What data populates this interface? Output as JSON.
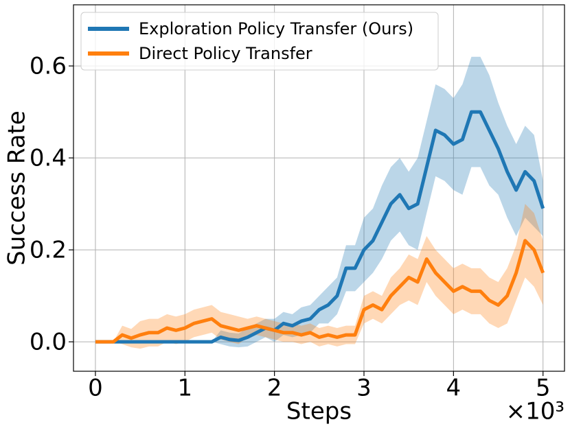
{
  "chart_data": {
    "type": "line",
    "xlabel": "Steps",
    "ylabel": "Success Rate",
    "x_offset_label": "×10³",
    "x": [
      0,
      0.1,
      0.2,
      0.3,
      0.4,
      0.5,
      0.6,
      0.7,
      0.8,
      0.9,
      1,
      1.1,
      1.2,
      1.3,
      1.4,
      1.5,
      1.6,
      1.7,
      1.8,
      1.9,
      2,
      2.1,
      2.2,
      2.3,
      2.4,
      2.5,
      2.6,
      2.7,
      2.8,
      2.9,
      3,
      3.1,
      3.2,
      3.3,
      3.4,
      3.5,
      3.6,
      3.7,
      3.8,
      3.9,
      4,
      4.1,
      4.2,
      4.3,
      4.4,
      4.5,
      4.6,
      4.7,
      4.8,
      4.9,
      5
    ],
    "series": [
      {
        "name": "Exploration Policy Transfer (Ours)",
        "color": "#1f77b4",
        "values": [
          0,
          0,
          0,
          0,
          0,
          0,
          0,
          0,
          0,
          0,
          0,
          0,
          0,
          0,
          0.01,
          0.005,
          0.003,
          0.01,
          0.02,
          0.03,
          0.025,
          0.04,
          0.035,
          0.045,
          0.05,
          0.07,
          0.08,
          0.1,
          0.16,
          0.16,
          0.2,
          0.22,
          0.26,
          0.3,
          0.32,
          0.29,
          0.3,
          0.38,
          0.46,
          0.45,
          0.43,
          0.44,
          0.5,
          0.5,
          0.46,
          0.42,
          0.37,
          0.33,
          0.37,
          0.35,
          0.29
        ],
        "lower": [
          0,
          0,
          0,
          0,
          0,
          0,
          0,
          0,
          0,
          0,
          0,
          0,
          0,
          0,
          -0.005,
          -0.01,
          -0.012,
          -0.01,
          0,
          0.01,
          0,
          0.015,
          0.01,
          0.015,
          0.02,
          0.04,
          0.04,
          0.06,
          0.11,
          0.11,
          0.13,
          0.15,
          0.18,
          0.22,
          0.24,
          0.21,
          0.2,
          0.28,
          0.36,
          0.35,
          0.33,
          0.32,
          0.38,
          0.38,
          0.34,
          0.32,
          0.27,
          0.23,
          0.27,
          0.25,
          0.23
        ],
        "upper": [
          0,
          0,
          0,
          0,
          0,
          0,
          0,
          0,
          0,
          0,
          0,
          0,
          0,
          0,
          0.025,
          0.02,
          0.018,
          0.03,
          0.04,
          0.05,
          0.05,
          0.065,
          0.06,
          0.075,
          0.08,
          0.1,
          0.12,
          0.14,
          0.21,
          0.21,
          0.27,
          0.29,
          0.34,
          0.38,
          0.4,
          0.37,
          0.4,
          0.48,
          0.56,
          0.55,
          0.53,
          0.56,
          0.62,
          0.62,
          0.58,
          0.52,
          0.47,
          0.43,
          0.47,
          0.45,
          0.35
        ]
      },
      {
        "name": "Direct Policy Transfer",
        "color": "#ff7f0e",
        "values": [
          0,
          0,
          0,
          0.015,
          0.008,
          0.015,
          0.02,
          0.02,
          0.03,
          0.025,
          0.03,
          0.04,
          0.045,
          0.05,
          0.035,
          0.03,
          0.025,
          0.03,
          0.035,
          0.03,
          0.025,
          0.02,
          0.02,
          0.015,
          0.02,
          0.01,
          0.015,
          0.01,
          0.015,
          0.015,
          0.07,
          0.08,
          0.07,
          0.1,
          0.12,
          0.14,
          0.13,
          0.18,
          0.15,
          0.13,
          0.11,
          0.12,
          0.11,
          0.11,
          0.09,
          0.08,
          0.1,
          0.15,
          0.22,
          0.2,
          0.15
        ],
        "lower": [
          0,
          0,
          0,
          -0.005,
          -0.012,
          -0.015,
          -0.01,
          -0.01,
          0,
          -0.005,
          0,
          0.01,
          0.015,
          0.02,
          0.005,
          0,
          -0.005,
          0.01,
          0.015,
          0.01,
          0.005,
          0,
          0,
          -0.005,
          0,
          -0.01,
          -0.005,
          -0.01,
          -0.005,
          -0.005,
          0.04,
          0.05,
          0.04,
          0.06,
          0.08,
          0.09,
          0.08,
          0.13,
          0.1,
          0.08,
          0.06,
          0.07,
          0.06,
          0.06,
          0.04,
          0.03,
          0.04,
          0.09,
          0.14,
          0.12,
          0.08
        ],
        "upper": [
          0,
          0,
          0,
          0.035,
          0.028,
          0.045,
          0.05,
          0.05,
          0.06,
          0.055,
          0.06,
          0.07,
          0.075,
          0.08,
          0.065,
          0.06,
          0.055,
          0.05,
          0.055,
          0.05,
          0.045,
          0.04,
          0.04,
          0.035,
          0.04,
          0.03,
          0.035,
          0.03,
          0.035,
          0.035,
          0.1,
          0.11,
          0.1,
          0.14,
          0.16,
          0.19,
          0.18,
          0.23,
          0.2,
          0.18,
          0.16,
          0.17,
          0.16,
          0.16,
          0.14,
          0.13,
          0.16,
          0.21,
          0.3,
          0.28,
          0.22
        ]
      }
    ],
    "xlim": [
      -0.245,
      5.24
    ],
    "ylim": [
      -0.064,
      0.733
    ],
    "xticks": [
      0,
      1,
      2,
      3,
      4,
      5
    ],
    "yticks": [
      {
        "value": 0,
        "label": "0.0"
      },
      {
        "value": 0.2,
        "label": "0.2"
      },
      {
        "value": 0.4,
        "label": "0.4"
      },
      {
        "value": 0.6,
        "label": "0.6"
      }
    ],
    "grid": true,
    "legend": "upper left"
  }
}
